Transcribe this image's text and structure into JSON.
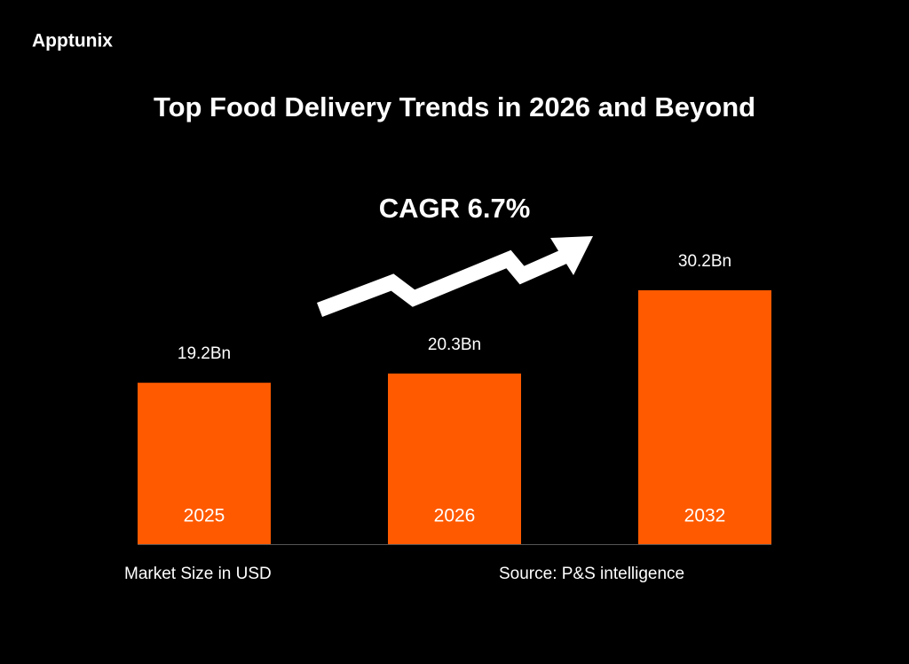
{
  "brand": "Apptunix",
  "chart_data": {
    "type": "bar",
    "title": "Top Food Delivery Trends in 2026 and Beyond",
    "annotation": "CAGR 6.7%",
    "categories": [
      "2025",
      "2026",
      "2032"
    ],
    "values": [
      19.2,
      20.3,
      30.2
    ],
    "value_labels": [
      "19.2Bn",
      "20.3Bn",
      "30.2Bn"
    ],
    "color": "#ff5a00",
    "caption": "Market Size in USD",
    "source": "Source: P&S intelligence"
  }
}
